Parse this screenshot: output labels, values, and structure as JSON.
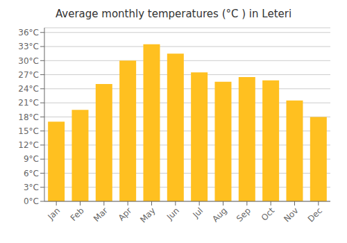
{
  "chart_data": {
    "type": "bar",
    "title": "Average monthly temperatures (°C ) in Leteri",
    "categories": [
      "Jan",
      "Feb",
      "Mar",
      "Apr",
      "May",
      "Jun",
      "Jul",
      "Aug",
      "Sep",
      "Oct",
      "Nov",
      "Dec"
    ],
    "values": [
      17,
      19.5,
      25,
      30,
      33.5,
      31.5,
      27.5,
      25.5,
      26.5,
      25.8,
      21.5,
      18
    ],
    "color": "#FFC020",
    "ylim": [
      0,
      37
    ],
    "yticks": [
      {
        "value": 0,
        "label": "0°C"
      },
      {
        "value": 3,
        "label": "3°C"
      },
      {
        "value": 6,
        "label": "6°C"
      },
      {
        "value": 9,
        "label": "9°C"
      },
      {
        "value": 12,
        "label": "12°C"
      },
      {
        "value": 15,
        "label": "15°C"
      },
      {
        "value": 18,
        "label": "18°C"
      },
      {
        "value": 21,
        "label": "21°C"
      },
      {
        "value": 24,
        "label": "24°C"
      },
      {
        "value": 27,
        "label": "27°C"
      },
      {
        "value": 30,
        "label": "30°C"
      },
      {
        "value": 33,
        "label": "33°C"
      },
      {
        "value": 36,
        "label": "36°C"
      }
    ],
    "grid": true
  }
}
